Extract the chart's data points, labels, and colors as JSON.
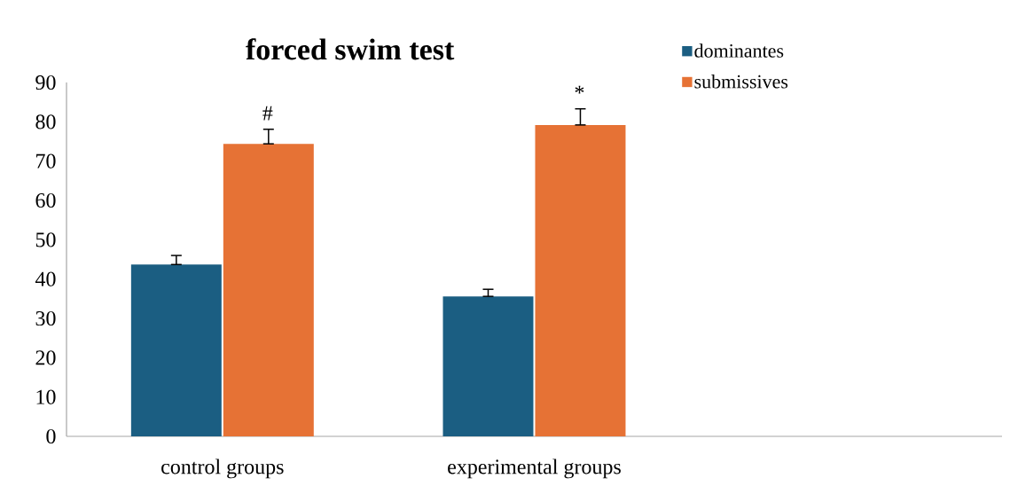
{
  "chart_data": {
    "type": "bar",
    "title": "forced swim test",
    "categories": [
      "control groups",
      "experimental groups",
      null
    ],
    "series": [
      {
        "name": "dominantes",
        "color": "#1b5e82",
        "values": [
          43.7,
          35.6,
          null
        ],
        "errors": [
          [
            43.7,
            46.0
          ],
          [
            35.6,
            37.4
          ],
          null
        ]
      },
      {
        "name": "submissives",
        "color": "#e67235",
        "values": [
          74.4,
          79.2,
          null
        ],
        "errors": [
          [
            74.4,
            78.1
          ],
          [
            79.2,
            83.3
          ],
          null
        ]
      }
    ],
    "ylim": [
      0,
      90
    ],
    "yticks": [
      0,
      10,
      20,
      30,
      40,
      50,
      60,
      70,
      80,
      90
    ],
    "legend": "top right",
    "annotations": [
      "#",
      "*"
    ]
  }
}
